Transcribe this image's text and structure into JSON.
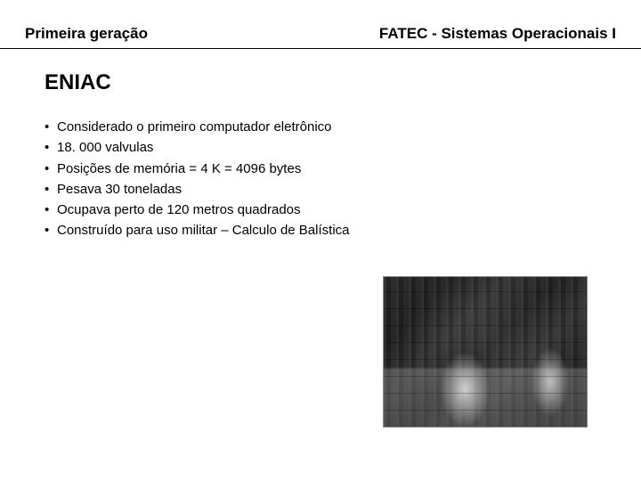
{
  "header": {
    "left": "Primeira geração",
    "right": "FATEC - Sistemas Operacionais I"
  },
  "title": "ENIAC",
  "bullets": [
    "Considerado o primeiro computador eletrônico",
    "18. 000 valvulas",
    "Posições de memória = 4 K = 4096 bytes",
    "Pesava 30 toneladas",
    "Ocupava perto de 120 metros quadrados",
    "Construído para uso militar – Calculo de Balística"
  ],
  "image": {
    "alt": "ENIAC computer historical photo"
  }
}
